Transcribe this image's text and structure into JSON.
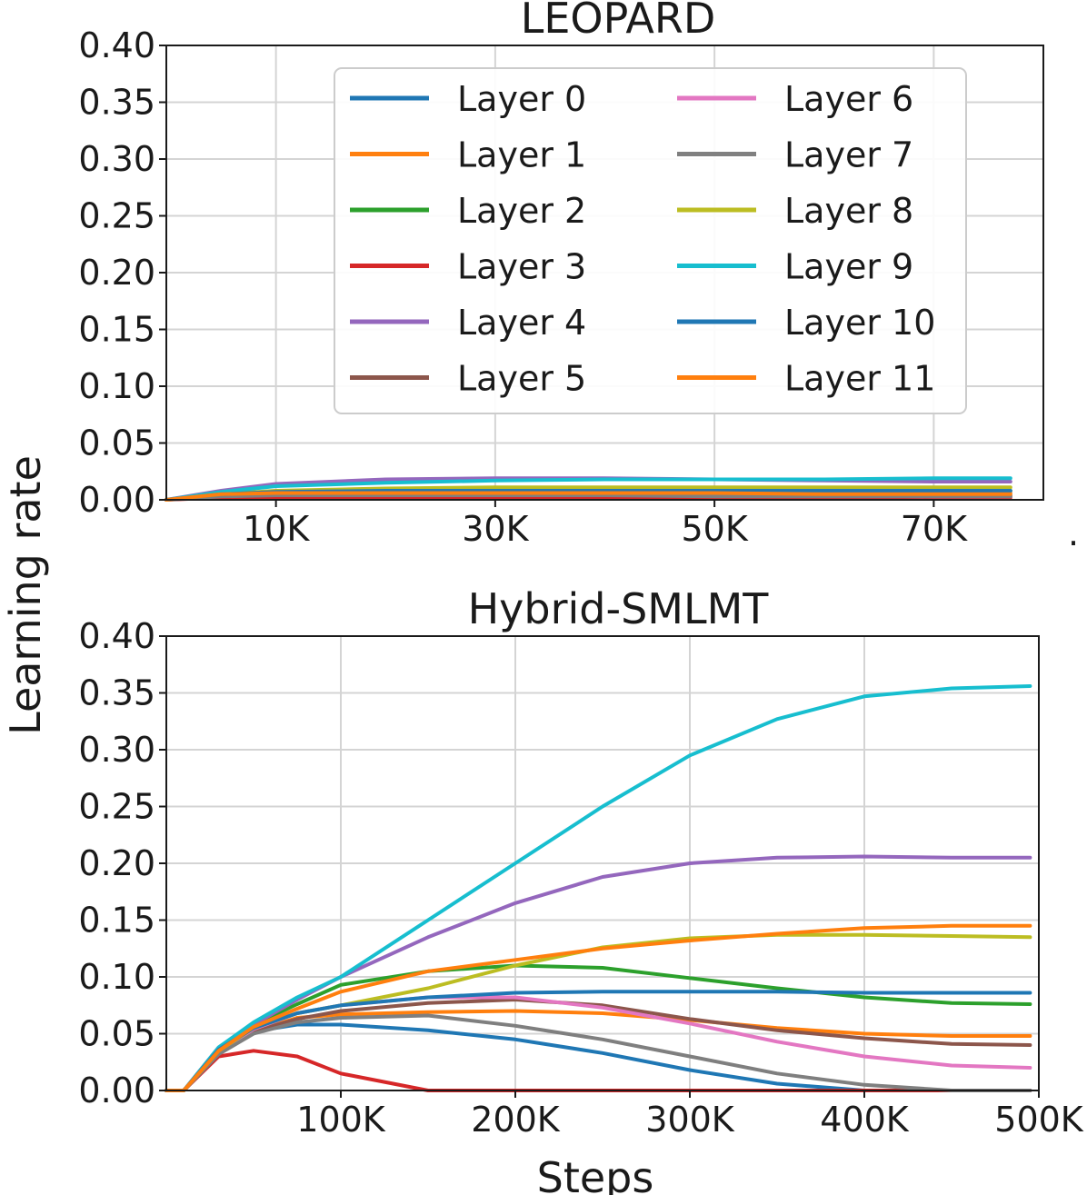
{
  "figure": {
    "shared_ylabel": "Learning rate",
    "shared_xlabel": "Steps",
    "corner_mark": "."
  },
  "layer_colors": [
    "#1f77b4",
    "#ff7f0e",
    "#2ca02c",
    "#d62728",
    "#9467bd",
    "#8c564b",
    "#e377c2",
    "#7f7f7f",
    "#bcbd22",
    "#17becf",
    "#1f77b4",
    "#ff7f0e"
  ],
  "chart_data": [
    {
      "type": "line",
      "title": "LEOPARD",
      "xlabel": "",
      "ylabel": "Learning rate",
      "xlim": [
        0,
        80000
      ],
      "ylim": [
        0,
        0.4
      ],
      "xticks": [
        10000,
        30000,
        50000,
        70000
      ],
      "xtick_labels": [
        "10K",
        "30K",
        "50K",
        "70K"
      ],
      "yticks": [
        0,
        0.05,
        0.1,
        0.15,
        0.2,
        0.25,
        0.3,
        0.35,
        0.4
      ],
      "ytick_labels": [
        "0.00",
        "0.05",
        "0.10",
        "0.15",
        "0.20",
        "0.25",
        "0.30",
        "0.35",
        "0.40"
      ],
      "grid": true,
      "legend": {
        "placement": "top-center",
        "columns": 2
      },
      "x": [
        0,
        5000,
        10000,
        20000,
        30000,
        40000,
        50000,
        60000,
        70000,
        77000
      ],
      "series": [
        {
          "name": "Layer 0",
          "values": [
            0,
            0.004,
            0.005,
            0.005,
            0.005,
            0.005,
            0.005,
            0.005,
            0.004,
            0.004
          ]
        },
        {
          "name": "Layer 1",
          "values": [
            0,
            0.006,
            0.007,
            0.007,
            0.007,
            0.006,
            0.006,
            0.006,
            0.006,
            0.006
          ]
        },
        {
          "name": "Layer 2",
          "values": [
            0,
            0.005,
            0.007,
            0.008,
            0.008,
            0.008,
            0.008,
            0.008,
            0.008,
            0.008
          ]
        },
        {
          "name": "Layer 3",
          "values": [
            0,
            0.002,
            0.002,
            0.002,
            0.002,
            0.002,
            0.002,
            0.002,
            0.002,
            0.002
          ]
        },
        {
          "name": "Layer 4",
          "values": [
            0,
            0.008,
            0.014,
            0.018,
            0.019,
            0.019,
            0.018,
            0.017,
            0.016,
            0.016
          ]
        },
        {
          "name": "Layer 5",
          "values": [
            0,
            0.004,
            0.005,
            0.005,
            0.005,
            0.004,
            0.004,
            0.004,
            0.003,
            0.003
          ]
        },
        {
          "name": "Layer 6",
          "values": [
            0,
            0.004,
            0.005,
            0.005,
            0.005,
            0.004,
            0.004,
            0.004,
            0.003,
            0.003
          ]
        },
        {
          "name": "Layer 7",
          "values": [
            0,
            0.003,
            0.004,
            0.004,
            0.004,
            0.004,
            0.003,
            0.003,
            0.003,
            0.003
          ]
        },
        {
          "name": "Layer 8",
          "values": [
            0,
            0.005,
            0.008,
            0.01,
            0.011,
            0.011,
            0.011,
            0.011,
            0.011,
            0.011
          ]
        },
        {
          "name": "Layer 9",
          "values": [
            0,
            0.007,
            0.012,
            0.015,
            0.017,
            0.018,
            0.018,
            0.018,
            0.019,
            0.019
          ]
        },
        {
          "name": "Layer 10",
          "values": [
            0,
            0.005,
            0.007,
            0.008,
            0.008,
            0.008,
            0.008,
            0.008,
            0.008,
            0.008
          ]
        },
        {
          "name": "Layer 11",
          "values": [
            0,
            0.005,
            0.006,
            0.006,
            0.006,
            0.006,
            0.006,
            0.005,
            0.005,
            0.005
          ]
        }
      ]
    },
    {
      "type": "line",
      "title": "Hybrid-SMLMT",
      "xlabel": "Steps",
      "ylabel": "Learning rate",
      "xlim": [
        0,
        500000
      ],
      "ylim": [
        0,
        0.4
      ],
      "xticks": [
        100000,
        200000,
        300000,
        400000,
        500000
      ],
      "xtick_labels": [
        "100K",
        "200K",
        "300K",
        "400K",
        "500K"
      ],
      "yticks": [
        0,
        0.05,
        0.1,
        0.15,
        0.2,
        0.25,
        0.3,
        0.35,
        0.4
      ],
      "ytick_labels": [
        "0.00",
        "0.05",
        "0.10",
        "0.15",
        "0.20",
        "0.25",
        "0.30",
        "0.35",
        "0.40"
      ],
      "grid": true,
      "x": [
        0,
        10000,
        30000,
        50000,
        75000,
        100000,
        150000,
        200000,
        250000,
        300000,
        350000,
        400000,
        450000,
        495000
      ],
      "series": [
        {
          "name": "Layer 0",
          "values": [
            0,
            0,
            0.035,
            0.052,
            0.058,
            0.058,
            0.053,
            0.045,
            0.033,
            0.018,
            0.006,
            0,
            0,
            0
          ]
        },
        {
          "name": "Layer 1",
          "values": [
            0,
            0,
            0.033,
            0.052,
            0.064,
            0.067,
            0.069,
            0.07,
            0.068,
            0.062,
            0.055,
            0.05,
            0.048,
            0.048
          ]
        },
        {
          "name": "Layer 2",
          "values": [
            0,
            0,
            0.036,
            0.058,
            0.076,
            0.093,
            0.105,
            0.11,
            0.108,
            0.099,
            0.09,
            0.082,
            0.077,
            0.076
          ]
        },
        {
          "name": "Layer 3",
          "values": [
            0,
            0,
            0.03,
            0.035,
            0.03,
            0.015,
            0,
            0,
            0,
            0,
            0,
            0,
            0,
            0
          ]
        },
        {
          "name": "Layer 4",
          "values": [
            0,
            0,
            0.038,
            0.058,
            0.08,
            0.1,
            0.135,
            0.165,
            0.188,
            0.2,
            0.205,
            0.206,
            0.205,
            0.205
          ]
        },
        {
          "name": "Layer 5",
          "values": [
            0,
            0,
            0.033,
            0.052,
            0.063,
            0.07,
            0.077,
            0.08,
            0.075,
            0.063,
            0.053,
            0.046,
            0.041,
            0.04
          ]
        },
        {
          "name": "Layer 6",
          "values": [
            0,
            0,
            0.034,
            0.054,
            0.068,
            0.075,
            0.082,
            0.082,
            0.073,
            0.059,
            0.043,
            0.03,
            0.022,
            0.02
          ]
        },
        {
          "name": "Layer 7",
          "values": [
            0,
            0,
            0.032,
            0.05,
            0.06,
            0.064,
            0.066,
            0.057,
            0.045,
            0.03,
            0.015,
            0.005,
            0,
            0
          ]
        },
        {
          "name": "Layer 8",
          "values": [
            0,
            0,
            0.035,
            0.055,
            0.068,
            0.075,
            0.09,
            0.11,
            0.126,
            0.134,
            0.137,
            0.137,
            0.136,
            0.135
          ]
        },
        {
          "name": "Layer 9",
          "values": [
            0,
            0,
            0.038,
            0.06,
            0.082,
            0.1,
            0.15,
            0.2,
            0.25,
            0.295,
            0.327,
            0.347,
            0.354,
            0.356
          ]
        },
        {
          "name": "Layer 10",
          "values": [
            0,
            0,
            0.036,
            0.055,
            0.068,
            0.075,
            0.082,
            0.086,
            0.087,
            0.087,
            0.087,
            0.086,
            0.086,
            0.086
          ]
        },
        {
          "name": "Layer 11",
          "values": [
            0,
            0,
            0.035,
            0.056,
            0.072,
            0.087,
            0.105,
            0.115,
            0.125,
            0.132,
            0.138,
            0.143,
            0.145,
            0.145
          ]
        }
      ]
    }
  ]
}
